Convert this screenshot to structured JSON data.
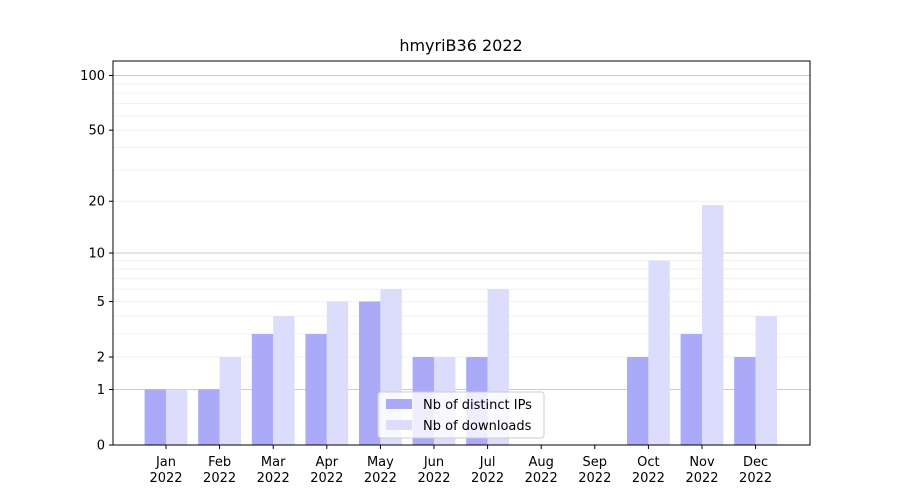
{
  "chart_data": {
    "type": "bar",
    "title": "hmyriB36 2022",
    "xlabel": "",
    "ylabel": "",
    "yscale": "log(1+y)",
    "ylim": [
      0,
      120
    ],
    "yticks": [
      0,
      1,
      2,
      5,
      10,
      20,
      50,
      100
    ],
    "grid": "horizontal",
    "legend_position": "bottom-center",
    "categories": [
      [
        "Jan",
        "2022"
      ],
      [
        "Feb",
        "2022"
      ],
      [
        "Mar",
        "2022"
      ],
      [
        "Apr",
        "2022"
      ],
      [
        "May",
        "2022"
      ],
      [
        "Jun",
        "2022"
      ],
      [
        "Jul",
        "2022"
      ],
      [
        "Aug",
        "2022"
      ],
      [
        "Sep",
        "2022"
      ],
      [
        "Oct",
        "2022"
      ],
      [
        "Nov",
        "2022"
      ],
      [
        "Dec",
        "2022"
      ]
    ],
    "series": [
      {
        "name": "Nb of distinct IPs",
        "color": "#aaaaf8",
        "values": [
          1,
          1,
          3,
          3,
          5,
          2,
          2,
          0,
          0,
          2,
          3,
          2
        ]
      },
      {
        "name": "Nb of downloads",
        "color": "#dcdcfc",
        "values": [
          1,
          2,
          4,
          5,
          6,
          2,
          6,
          0,
          0,
          9,
          19,
          4
        ]
      }
    ]
  }
}
